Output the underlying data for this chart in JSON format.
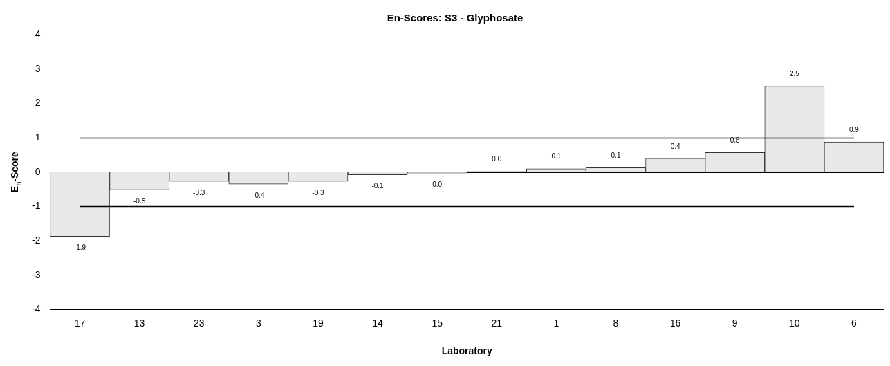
{
  "chart_data": {
    "type": "bar",
    "title": "En-Scores: S3 - Glyphosate",
    "xlabel": "Laboratory",
    "ylabel": "E$_{n}$-Score",
    "categories": [
      "17",
      "13",
      "23",
      "3",
      "19",
      "14",
      "15",
      "21",
      "1",
      "8",
      "16",
      "9",
      "10",
      "6"
    ],
    "values": [
      -1.87,
      -0.52,
      -0.27,
      -0.35,
      -0.27,
      -0.08,
      -0.03,
      0.02,
      0.1,
      0.13,
      0.4,
      0.57,
      2.5,
      0.88
    ],
    "value_labels": [
      "-1.9",
      "-0.5",
      "-0.3",
      "-0.4",
      "-0.3",
      "-0.1",
      "0.0",
      "0.0",
      "0.1",
      "0.1",
      "0.4",
      "0.6",
      "2.5",
      "0.9"
    ],
    "color": "#e8e8e8",
    "ylim": [
      -4,
      4
    ],
    "yticks": [
      -4,
      -3,
      -2,
      -1,
      0,
      1,
      2,
      3,
      4
    ],
    "grid": false,
    "legend": false,
    "ref_lines": [
      {
        "axis": "y",
        "value": 1,
        "color": "#000000"
      },
      {
        "axis": "y",
        "value": -1,
        "color": "#000000"
      }
    ]
  }
}
